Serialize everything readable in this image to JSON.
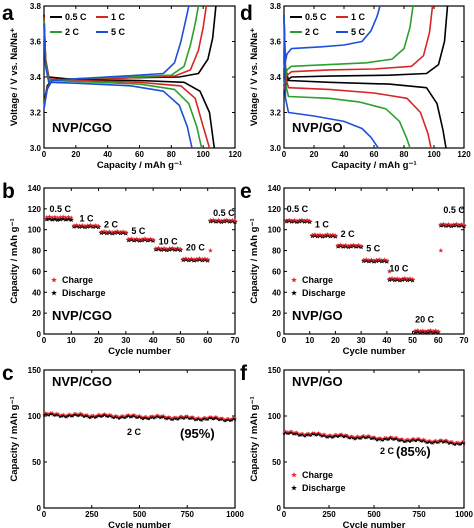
{
  "colors": {
    "c05": "#000000",
    "c1": "#d62728",
    "c2": "#2ca02c",
    "c5": "#1f4fd8",
    "charge": "#e8242b",
    "discharge": "#000000"
  },
  "chart_data": [
    {
      "panel": "a",
      "type": "line",
      "xlabel": "Capacity / mAh g⁻¹",
      "ylabel": "Voltage / V vs. Na/Na⁺",
      "xlim": [
        0,
        120
      ],
      "ylim": [
        3.0,
        3.8
      ],
      "xticks": [
        0,
        20,
        40,
        60,
        80,
        100,
        120
      ],
      "yticks": [
        3.0,
        3.2,
        3.4,
        3.6,
        3.8
      ],
      "sample": "NVP/CGO",
      "legend": [
        "0.5 C",
        "1 C",
        "2 C",
        "5 C"
      ],
      "series": [
        {
          "name": "0.5 C",
          "color": "c05",
          "charge": [
            [
              0,
              3.25
            ],
            [
              2,
              3.35
            ],
            [
              5,
              3.385
            ],
            [
              20,
              3.39
            ],
            [
              50,
              3.395
            ],
            [
              85,
              3.4
            ],
            [
              97,
              3.42
            ],
            [
              103,
              3.5
            ],
            [
              106,
              3.62
            ],
            [
              108,
              3.8
            ]
          ],
          "discharge": [
            [
              0,
              3.75
            ],
            [
              1,
              3.5
            ],
            [
              3,
              3.4
            ],
            [
              20,
              3.385
            ],
            [
              60,
              3.38
            ],
            [
              88,
              3.37
            ],
            [
              98,
              3.32
            ],
            [
              104,
              3.2
            ],
            [
              107,
              3.0
            ]
          ]
        },
        {
          "name": "1 C",
          "color": "c1",
          "charge": [
            [
              0,
              3.24
            ],
            [
              2,
              3.34
            ],
            [
              5,
              3.38
            ],
            [
              20,
              3.39
            ],
            [
              50,
              3.395
            ],
            [
              82,
              3.405
            ],
            [
              92,
              3.44
            ],
            [
              97,
              3.55
            ],
            [
              100,
              3.68
            ],
            [
              102,
              3.8
            ]
          ],
          "discharge": [
            [
              0,
              3.74
            ],
            [
              1,
              3.5
            ],
            [
              3,
              3.39
            ],
            [
              20,
              3.38
            ],
            [
              60,
              3.37
            ],
            [
              86,
              3.35
            ],
            [
              95,
              3.28
            ],
            [
              100,
              3.12
            ],
            [
              104,
              3.0
            ]
          ]
        },
        {
          "name": "2 C",
          "color": "c2",
          "charge": [
            [
              0,
              3.23
            ],
            [
              2,
              3.33
            ],
            [
              5,
              3.38
            ],
            [
              20,
              3.39
            ],
            [
              50,
              3.4
            ],
            [
              80,
              3.41
            ],
            [
              88,
              3.46
            ],
            [
              92,
              3.58
            ],
            [
              95,
              3.7
            ],
            [
              97,
              3.8
            ]
          ],
          "discharge": [
            [
              0,
              3.72
            ],
            [
              1,
              3.48
            ],
            [
              3,
              3.38
            ],
            [
              20,
              3.375
            ],
            [
              60,
              3.36
            ],
            [
              82,
              3.33
            ],
            [
              91,
              3.25
            ],
            [
              96,
              3.12
            ],
            [
              99,
              3.0
            ]
          ]
        },
        {
          "name": "5 C",
          "color": "c5",
          "charge": [
            [
              0,
              3.22
            ],
            [
              2,
              3.33
            ],
            [
              5,
              3.38
            ],
            [
              20,
              3.39
            ],
            [
              50,
              3.405
            ],
            [
              75,
              3.42
            ],
            [
              82,
              3.48
            ],
            [
              86,
              3.6
            ],
            [
              89,
              3.72
            ],
            [
              91,
              3.8
            ]
          ],
          "discharge": [
            [
              0,
              3.7
            ],
            [
              1,
              3.46
            ],
            [
              3,
              3.37
            ],
            [
              20,
              3.365
            ],
            [
              55,
              3.35
            ],
            [
              75,
              3.32
            ],
            [
              85,
              3.24
            ],
            [
              90,
              3.12
            ],
            [
              93,
              3.0
            ]
          ]
        }
      ]
    },
    {
      "panel": "d",
      "type": "line",
      "xlabel": "Capacity / mAh g⁻¹",
      "ylabel": "Voltage / V vs. Na/Na⁺",
      "xlim": [
        0,
        120
      ],
      "ylim": [
        3.0,
        3.8
      ],
      "xticks": [
        0,
        20,
        40,
        60,
        80,
        100,
        120
      ],
      "yticks": [
        3.0,
        3.2,
        3.4,
        3.6,
        3.8
      ],
      "sample": "NVP/GO",
      "legend": [
        "0.5 C",
        "1 C",
        "2 C",
        "5 C"
      ],
      "series": [
        {
          "name": "0.5 C",
          "color": "c05",
          "charge": [
            [
              0,
              3.3
            ],
            [
              2,
              3.38
            ],
            [
              5,
              3.4
            ],
            [
              30,
              3.405
            ],
            [
              70,
              3.41
            ],
            [
              95,
              3.42
            ],
            [
              103,
              3.47
            ],
            [
              107,
              3.6
            ],
            [
              109,
              3.8
            ]
          ],
          "discharge": [
            [
              0,
              3.75
            ],
            [
              1,
              3.45
            ],
            [
              3,
              3.38
            ],
            [
              30,
              3.37
            ],
            [
              70,
              3.36
            ],
            [
              95,
              3.34
            ],
            [
              102,
              3.25
            ],
            [
              106,
              3.1
            ],
            [
              108,
              3.0
            ]
          ]
        },
        {
          "name": "1 C",
          "color": "c1",
          "charge": [
            [
              0,
              3.33
            ],
            [
              2,
              3.41
            ],
            [
              5,
              3.43
            ],
            [
              30,
              3.44
            ],
            [
              60,
              3.445
            ],
            [
              85,
              3.46
            ],
            [
              93,
              3.52
            ],
            [
              97,
              3.65
            ],
            [
              99,
              3.8
            ]
          ],
          "discharge": [
            [
              0,
              3.75
            ],
            [
              1,
              3.4
            ],
            [
              3,
              3.34
            ],
            [
              30,
              3.33
            ],
            [
              60,
              3.31
            ],
            [
              82,
              3.28
            ],
            [
              91,
              3.2
            ],
            [
              96,
              3.08
            ],
            [
              98,
              3.0
            ]
          ]
        },
        {
          "name": "2 C",
          "color": "c2",
          "charge": [
            [
              0,
              3.36
            ],
            [
              2,
              3.44
            ],
            [
              5,
              3.46
            ],
            [
              30,
              3.47
            ],
            [
              55,
              3.48
            ],
            [
              72,
              3.5
            ],
            [
              80,
              3.56
            ],
            [
              84,
              3.68
            ],
            [
              86,
              3.8
            ]
          ],
          "discharge": [
            [
              0,
              3.75
            ],
            [
              1,
              3.36
            ],
            [
              3,
              3.29
            ],
            [
              30,
              3.28
            ],
            [
              50,
              3.26
            ],
            [
              68,
              3.22
            ],
            [
              77,
              3.15
            ],
            [
              82,
              3.05
            ],
            [
              84,
              3.0
            ]
          ]
        },
        {
          "name": "5 C",
          "color": "c5",
          "charge": [
            [
              0,
              3.45
            ],
            [
              2,
              3.53
            ],
            [
              5,
              3.56
            ],
            [
              25,
              3.57
            ],
            [
              40,
              3.58
            ],
            [
              52,
              3.6
            ],
            [
              58,
              3.66
            ],
            [
              62,
              3.74
            ],
            [
              64,
              3.8
            ]
          ],
          "discharge": [
            [
              0,
              3.75
            ],
            [
              1,
              3.28
            ],
            [
              3,
              3.2
            ],
            [
              20,
              3.18
            ],
            [
              40,
              3.15
            ],
            [
              52,
              3.11
            ],
            [
              58,
              3.06
            ],
            [
              62,
              3.01
            ],
            [
              63,
              3.0
            ]
          ]
        }
      ]
    },
    {
      "panel": "b",
      "type": "scatter",
      "xlabel": "Cycle number",
      "ylabel": "Capacity / mAh g⁻¹",
      "xlim": [
        0,
        70
      ],
      "ylim": [
        0,
        140
      ],
      "xticks": [
        0,
        10,
        20,
        30,
        40,
        50,
        60,
        70
      ],
      "yticks": [
        0,
        20,
        40,
        60,
        80,
        100,
        120,
        140
      ],
      "sample": "NVP/CGO",
      "legend": [
        "Charge",
        "Discharge"
      ],
      "rate_labels": [
        {
          "text": "0.5 C",
          "x": 2,
          "y": 117
        },
        {
          "text": "1 C",
          "x": 13,
          "y": 108
        },
        {
          "text": "2 C",
          "x": 22,
          "y": 102
        },
        {
          "text": "5 C",
          "x": 32,
          "y": 96
        },
        {
          "text": "10 C",
          "x": 42,
          "y": 86
        },
        {
          "text": "20 C",
          "x": 52,
          "y": 80
        },
        {
          "text": "0.5 C",
          "x": 62,
          "y": 113
        }
      ],
      "segments": [
        {
          "start": 1,
          "end": 10,
          "charge": 112,
          "discharge": 110
        },
        {
          "start": 11,
          "end": 20,
          "charge": 104,
          "discharge": 103
        },
        {
          "start": 21,
          "end": 30,
          "charge": 98,
          "discharge": 97
        },
        {
          "start": 31,
          "end": 40,
          "charge": 91,
          "discharge": 90
        },
        {
          "start": 41,
          "end": 50,
          "charge": 82,
          "discharge": 81
        },
        {
          "start": 51,
          "end": 60,
          "charge": 72,
          "discharge": 71
        },
        {
          "start": 61,
          "end": 70,
          "charge": 109,
          "discharge": 108
        }
      ],
      "transition_charge": [
        {
          "x": 61,
          "y": 80
        }
      ]
    },
    {
      "panel": "e",
      "type": "scatter",
      "xlabel": "Cycle number",
      "ylabel": "Capacity / mAh g⁻¹",
      "xlim": [
        0,
        70
      ],
      "ylim": [
        0,
        140
      ],
      "xticks": [
        0,
        10,
        20,
        30,
        40,
        50,
        60,
        70
      ],
      "yticks": [
        0,
        20,
        40,
        60,
        80,
        100,
        120,
        140
      ],
      "sample": "NVP/GO",
      "legend": [
        "Charge",
        "Discharge"
      ],
      "rate_labels": [
        {
          "text": "0.5 C",
          "x": 1,
          "y": 117
        },
        {
          "text": "1 C",
          "x": 12,
          "y": 102
        },
        {
          "text": "2 C",
          "x": 22,
          "y": 93
        },
        {
          "text": "5 C",
          "x": 32,
          "y": 79
        },
        {
          "text": "10 C",
          "x": 41,
          "y": 60
        },
        {
          "text": "20 C",
          "x": 51,
          "y": 11
        },
        {
          "text": "0.5 C",
          "x": 62,
          "y": 116
        }
      ],
      "segments": [
        {
          "start": 1,
          "end": 10,
          "charge": 109,
          "discharge": 108
        },
        {
          "start": 11,
          "end": 20,
          "charge": 95,
          "discharge": 94
        },
        {
          "start": 21,
          "end": 30,
          "charge": 85,
          "discharge": 84
        },
        {
          "start": 31,
          "end": 40,
          "charge": 71,
          "discharge": 70
        },
        {
          "start": 41,
          "end": 50,
          "charge": 53,
          "discharge": 52
        },
        {
          "start": 51,
          "end": 60,
          "charge": 3,
          "discharge": 2
        },
        {
          "start": 61,
          "end": 70,
          "charge": 105,
          "discharge": 104
        }
      ],
      "transition_charge": [
        {
          "x": 41,
          "y": 60
        },
        {
          "x": 61,
          "y": 80
        }
      ]
    },
    {
      "panel": "c",
      "type": "scatter",
      "xlabel": "Cycle number",
      "ylabel": "Capacity / mAh g⁻¹",
      "xlim": [
        0,
        1000
      ],
      "ylim": [
        0,
        150
      ],
      "xticks": [
        0,
        250,
        500,
        750,
        1000
      ],
      "yticks": [
        0,
        50,
        100,
        150
      ],
      "sample": "NVP/CGO",
      "rate": "2 C",
      "retention": "(95%)",
      "series": [
        {
          "name": "Charge",
          "start": 102,
          "end": 97
        },
        {
          "name": "Discharge",
          "start": 101,
          "end": 96
        }
      ]
    },
    {
      "panel": "f",
      "type": "scatter",
      "xlabel": "Cycle number",
      "ylabel": "Capacity / mAh g⁻¹",
      "xlim": [
        0,
        1000
      ],
      "ylim": [
        0,
        150
      ],
      "xticks": [
        0,
        250,
        500,
        750,
        1000
      ],
      "yticks": [
        0,
        50,
        100,
        150
      ],
      "sample": "NVP/GO",
      "rate": "2 C",
      "retention": "(85%)",
      "legend": [
        "Charge",
        "Discharge"
      ],
      "series": [
        {
          "name": "Charge",
          "start": 82,
          "end": 71
        },
        {
          "name": "Discharge",
          "start": 81,
          "end": 70
        }
      ]
    }
  ]
}
